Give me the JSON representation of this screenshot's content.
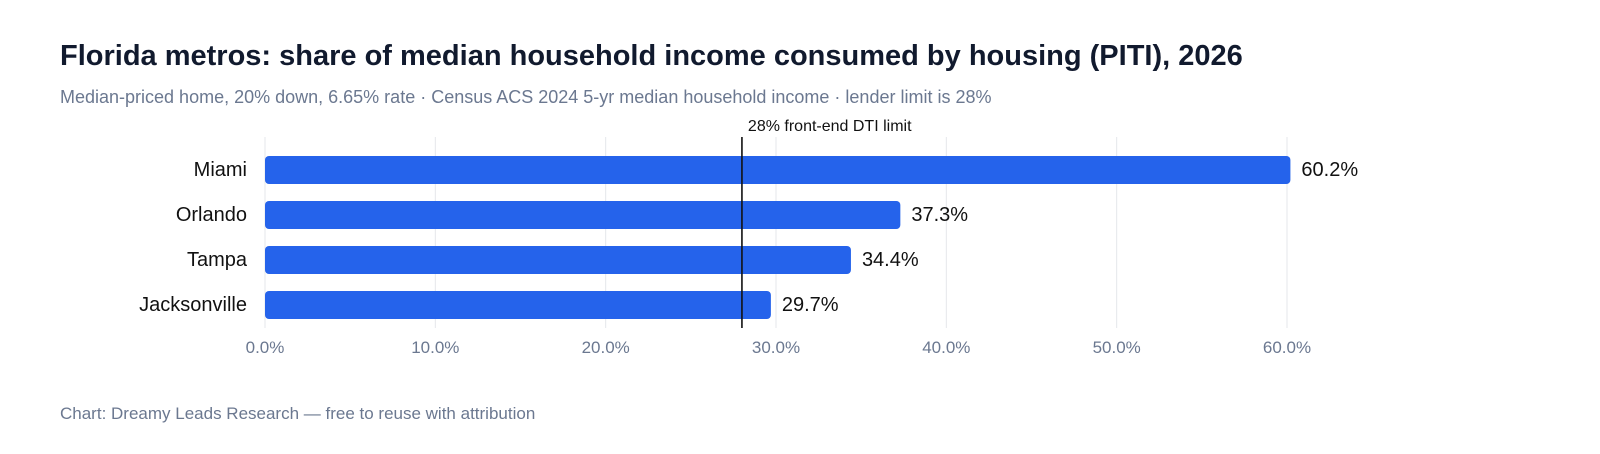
{
  "header": {
    "title": "Florida metros: share of median household income consumed by housing (PITI), 2026",
    "subtitle": "Median-priced home, 20% down, 6.65% rate · Census ACS 2024 5-yr median household income · lender limit is 28%"
  },
  "footer": {
    "credit": "Chart: Dreamy Leads Research — free to reuse with attribution"
  },
  "chart_data": {
    "type": "bar",
    "orientation": "horizontal",
    "categories": [
      "Miami",
      "Orlando",
      "Tampa",
      "Jacksonville"
    ],
    "values": [
      60.2,
      37.3,
      34.4,
      29.7
    ],
    "value_labels": [
      "60.2%",
      "37.3%",
      "34.4%",
      "29.7%"
    ],
    "xlim": [
      0,
      60
    ],
    "xticks": [
      0,
      10,
      20,
      30,
      40,
      50,
      60
    ],
    "xtick_labels": [
      "0.0%",
      "10.0%",
      "20.0%",
      "30.0%",
      "40.0%",
      "50.0%",
      "60.0%"
    ],
    "grid": true,
    "legend": "none",
    "reference_line": {
      "value": 28,
      "label": "28% front-end DTI limit"
    },
    "colors": {
      "bar": "#2563eb",
      "grid": "#e5e7eb",
      "reference": "#111111",
      "tick_text": "#6b7890"
    }
  }
}
